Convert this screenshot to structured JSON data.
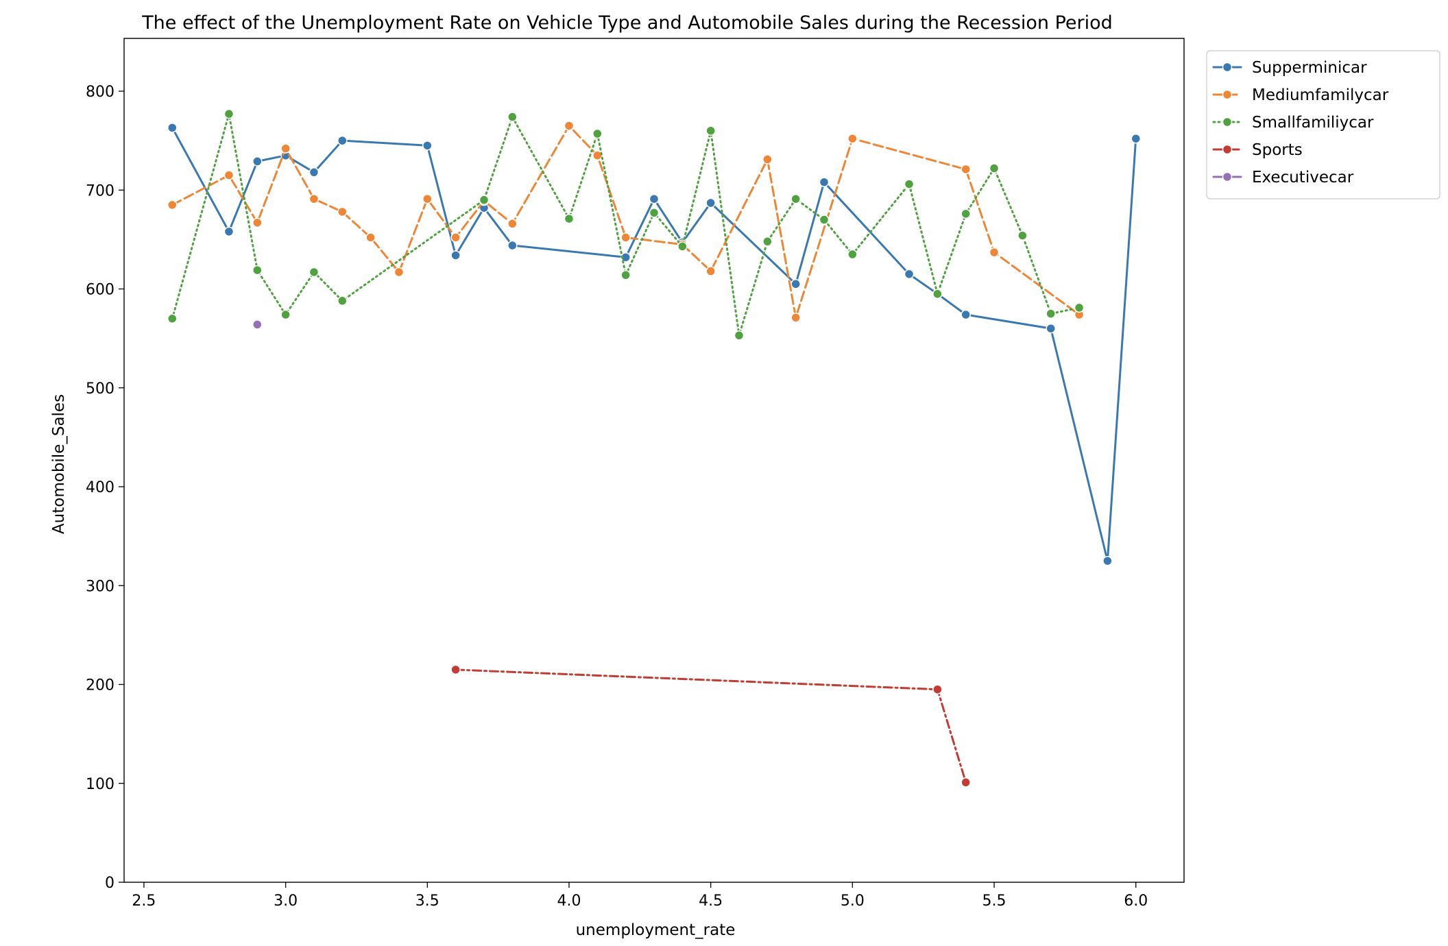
{
  "chart_data": {
    "type": "line",
    "title": "The effect of the Unemployment Rate on Vehicle Type and Automobile Sales during the Recession Period",
    "xlabel": "unemployment_rate",
    "ylabel": "Automobile_Sales",
    "xlim": [
      2.43,
      6.17
    ],
    "ylim": [
      0,
      800
    ],
    "xticks": [
      "2.5",
      "3.0",
      "3.5",
      "4.0",
      "4.5",
      "5.0",
      "5.5",
      "6.0"
    ],
    "yticks": [
      "0",
      "100",
      "200",
      "300",
      "400",
      "500",
      "600",
      "700",
      "800"
    ],
    "grid": false,
    "legend_position": "outside-upper-right",
    "series": [
      {
        "name": "Supperminicar",
        "color": "#3a78b2",
        "dash": "solid",
        "points": [
          [
            2.6,
            763
          ],
          [
            2.8,
            658
          ],
          [
            2.9,
            729
          ],
          [
            3.0,
            735
          ],
          [
            3.1,
            718
          ],
          [
            3.2,
            750
          ],
          [
            3.5,
            745
          ],
          [
            3.6,
            634
          ],
          [
            3.7,
            682
          ],
          [
            3.8,
            644
          ],
          [
            4.2,
            632
          ],
          [
            4.3,
            691
          ],
          [
            4.4,
            647
          ],
          [
            4.5,
            687
          ],
          [
            4.8,
            605
          ],
          [
            4.9,
            708
          ],
          [
            5.2,
            615
          ],
          [
            5.3,
            595
          ],
          [
            5.4,
            574
          ],
          [
            5.7,
            560
          ],
          [
            5.9,
            325
          ],
          [
            6.0,
            752
          ]
        ]
      },
      {
        "name": "Mediumfamilycar",
        "color": "#ef8636",
        "dash": "dashed",
        "points": [
          [
            2.6,
            685
          ],
          [
            2.8,
            715
          ],
          [
            2.9,
            667
          ],
          [
            3.0,
            742
          ],
          [
            3.1,
            691
          ],
          [
            3.2,
            678
          ],
          [
            3.3,
            652
          ],
          [
            3.4,
            617
          ],
          [
            3.5,
            691
          ],
          [
            3.6,
            652
          ],
          [
            3.7,
            689
          ],
          [
            3.8,
            666
          ],
          [
            4.0,
            765
          ],
          [
            4.1,
            735
          ],
          [
            4.2,
            652
          ],
          [
            4.4,
            645
          ],
          [
            4.5,
            618
          ],
          [
            4.7,
            731
          ],
          [
            4.8,
            571
          ],
          [
            5.0,
            752
          ],
          [
            5.4,
            721
          ],
          [
            5.5,
            637
          ],
          [
            5.8,
            574
          ]
        ]
      },
      {
        "name": "Smallfamiliycar",
        "color": "#4fa23f",
        "dash": "dotted",
        "points": [
          [
            2.6,
            570
          ],
          [
            2.8,
            777
          ],
          [
            2.9,
            619
          ],
          [
            3.0,
            574
          ],
          [
            3.1,
            617
          ],
          [
            3.2,
            588
          ],
          [
            3.7,
            690
          ],
          [
            3.8,
            774
          ],
          [
            4.0,
            671
          ],
          [
            4.1,
            757
          ],
          [
            4.2,
            614
          ],
          [
            4.3,
            677
          ],
          [
            4.4,
            643
          ],
          [
            4.5,
            760
          ],
          [
            4.6,
            553
          ],
          [
            4.7,
            648
          ],
          [
            4.8,
            691
          ],
          [
            4.9,
            670
          ],
          [
            5.0,
            635
          ],
          [
            5.2,
            706
          ],
          [
            5.3,
            595
          ],
          [
            5.4,
            676
          ],
          [
            5.5,
            722
          ],
          [
            5.6,
            654
          ],
          [
            5.7,
            575
          ],
          [
            5.8,
            581
          ]
        ]
      },
      {
        "name": "Sports",
        "color": "#c33b33",
        "dash": "dashdot",
        "points": [
          [
            3.6,
            215
          ],
          [
            5.3,
            195
          ],
          [
            5.4,
            101
          ]
        ]
      },
      {
        "name": "Executivecar",
        "color": "#9471b7",
        "dash": "longdash",
        "points": [
          [
            2.9,
            564
          ]
        ]
      }
    ]
  }
}
